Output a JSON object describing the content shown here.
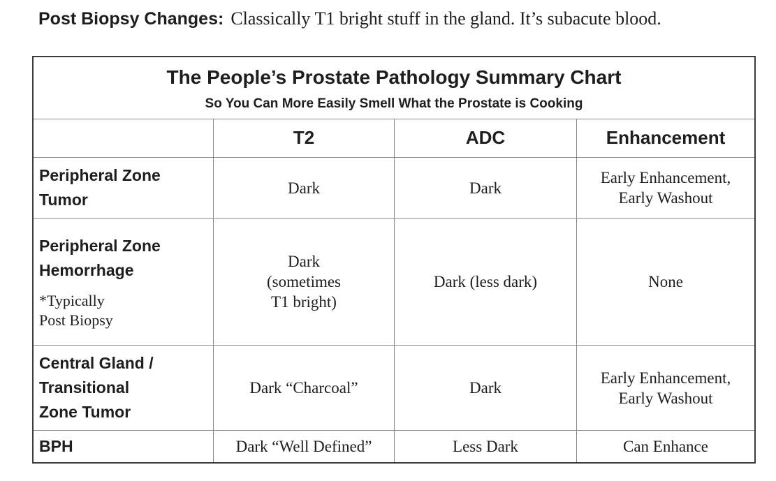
{
  "intro": {
    "label": "Post Biopsy Changes:",
    "text": "Classically T1 bright stuff in the gland.  It’s subacute blood."
  },
  "chart": {
    "title": "The People’s Prostate Pathology Summary Chart",
    "subtitle": "So You Can More Easily Smell What the Prostate is Cooking",
    "columns": [
      "T2",
      "ADC",
      "Enhancement"
    ],
    "rows": [
      {
        "label": "Peripheral Zone\nTumor",
        "note": "",
        "t2": "Dark",
        "adc": "Dark",
        "enhancement": "Early Enhancement,\nEarly Washout"
      },
      {
        "label": "Peripheral Zone\nHemorrhage",
        "note": "*Typically\nPost Biopsy",
        "t2": "Dark\n(sometimes\nT1 bright)",
        "adc": "Dark (less dark)",
        "enhancement": "None"
      },
      {
        "label": "Central Gland /\nTransitional\nZone Tumor",
        "note": "",
        "t2": "Dark “Charcoal”",
        "adc": "Dark",
        "enhancement": "Early Enhancement,\nEarly Washout"
      },
      {
        "label": "BPH",
        "note": "",
        "t2": "Dark “Well Defined”",
        "adc": "Less Dark",
        "enhancement": "Can Enhance"
      }
    ]
  }
}
